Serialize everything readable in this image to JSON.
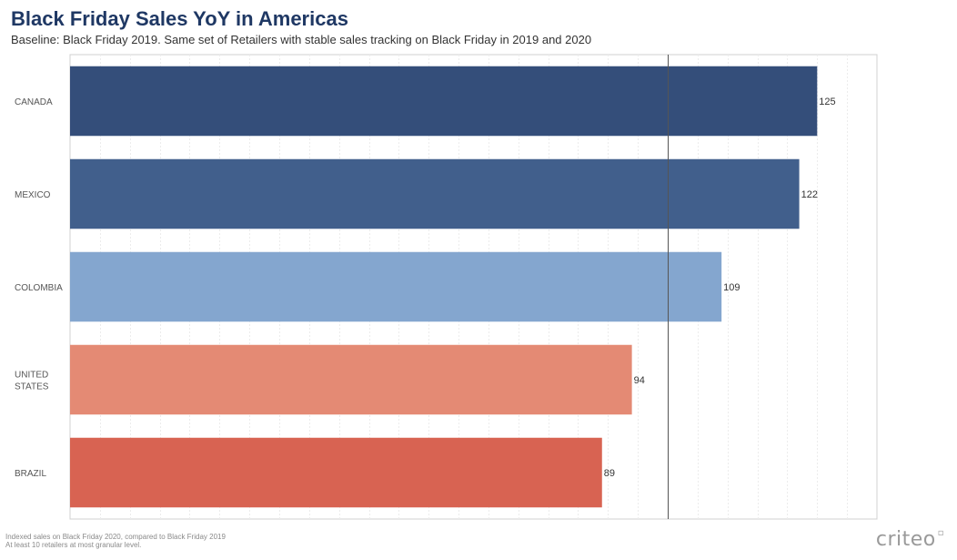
{
  "header": {
    "title": "Black Friday Sales YoY in Americas",
    "subtitle": "Baseline: Black Friday 2019. Same set of Retailers with stable sales tracking on Black Friday in 2019 and 2020"
  },
  "footer": {
    "note_line1": "Indexed sales on Black Friday 2020, compared to Black Friday 2019",
    "note_line2": "At least 10 retailers at most granular level.",
    "logo_text": "criteo"
  },
  "chart_data": {
    "type": "bar",
    "orientation": "horizontal",
    "title": "Black Friday Sales YoY in Americas",
    "subtitle": "Baseline: Black Friday 2019. Same set of Retailers with stable sales tracking on Black Friday in 2019 and 2020",
    "categories": [
      "CANADA",
      "MEXICO",
      "COLOMBIA",
      "UNITED STATES",
      "BRAZIL"
    ],
    "category_label_lines": [
      [
        "CANADA"
      ],
      [
        "MEXICO"
      ],
      [
        "COLOMBIA"
      ],
      [
        "UNITED",
        "STATES"
      ],
      [
        "BRAZIL"
      ]
    ],
    "values": [
      125,
      122,
      109,
      94,
      89
    ],
    "data_labels": [
      "125",
      "122",
      "109",
      "94",
      "89"
    ],
    "colors": [
      "#344e7a",
      "#415f8c",
      "#84a6cf",
      "#e48a74",
      "#d86352"
    ],
    "baseline_value": 100,
    "xlim": [
      0,
      135
    ],
    "xlabel": "",
    "ylabel": "",
    "grid": true,
    "legend": "none"
  }
}
